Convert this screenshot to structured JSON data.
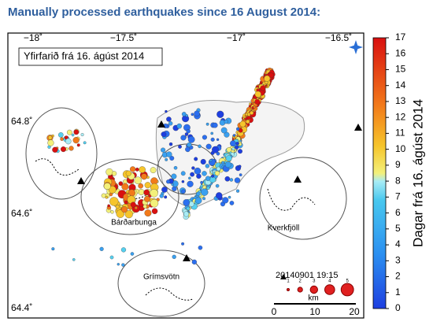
{
  "header": {
    "title": "Manually processed earthquakes since 16 August 2014:"
  },
  "map": {
    "inset_label": "Yfirfarið frá 16. ágúst 2014",
    "lon_labels": [
      "−18˚",
      "−17.5˚",
      "−17˚",
      "−16.5˚"
    ],
    "lat_labels": [
      "64.8˚",
      "64.6˚",
      "64.4˚"
    ],
    "places": [
      "Bárðarbunga",
      "Kverkfjöll",
      "Grímsvötn"
    ],
    "timestamp": "20140901 19:15",
    "magnitude_labels": [
      "1",
      "2",
      "3",
      "4",
      "5"
    ],
    "scale": {
      "labels": [
        "0",
        "10",
        "20"
      ],
      "unit": "km"
    }
  },
  "colorbar": {
    "label": "Dagar frá 16. ágúst 2014",
    "ticks": [
      0,
      1,
      2,
      3,
      4,
      5,
      6,
      7,
      8,
      9,
      10,
      11,
      12,
      13,
      14,
      15,
      16,
      17
    ]
  }
}
